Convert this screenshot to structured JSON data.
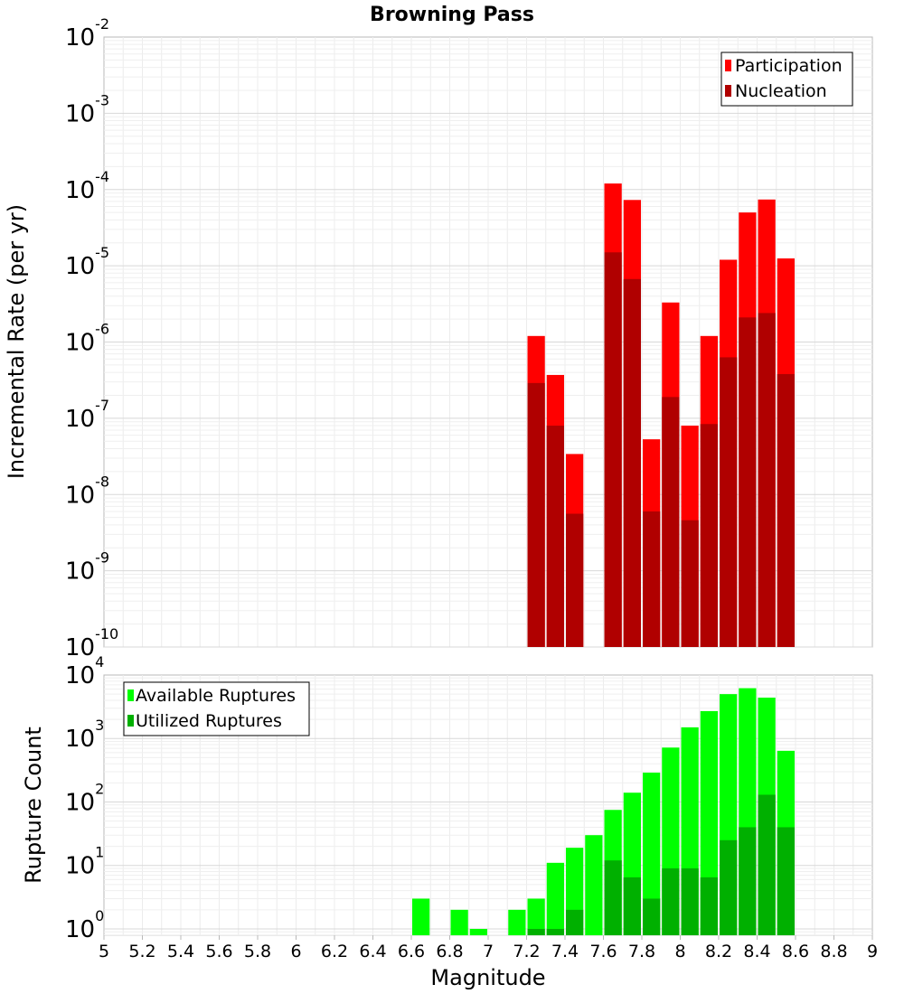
{
  "chart_data": {
    "title": "Browning Pass",
    "xlabel": "Magnitude",
    "xlim": [
      5,
      9
    ],
    "x_ticks": [
      "5",
      "5.2",
      "5.4",
      "5.6",
      "5.8",
      "6",
      "6.2",
      "6.4",
      "6.6",
      "6.8",
      "7",
      "7.2",
      "7.4",
      "7.6",
      "7.8",
      "8",
      "8.2",
      "8.4",
      "8.6",
      "8.8",
      "9"
    ],
    "bin_width": 0.1,
    "panels": [
      {
        "type": "bar",
        "yscale": "log",
        "ylabel": "Incremental Rate (per yr)",
        "ylim_exp": [
          -10,
          -2
        ],
        "y_tick_exponents": [
          "-10",
          "-9",
          "-8",
          "-7",
          "-6",
          "-5",
          "-4",
          "-3",
          "-2"
        ],
        "legend_position": "top-right",
        "series": [
          {
            "name": "Participation",
            "color": "#ff0000",
            "x": [
              7.25,
              7.35,
              7.45,
              7.65,
              7.75,
              7.85,
              7.95,
              8.05,
              8.15,
              8.25,
              8.35,
              8.45,
              8.55
            ],
            "values": [
              1.2e-06,
              3.7e-07,
              3.4e-08,
              0.00012,
              7.3e-05,
              5.3e-08,
              3.3e-06,
              8e-08,
              1.2e-06,
              1.2e-05,
              5e-05,
              7.4e-05,
              1.25e-05
            ]
          },
          {
            "name": "Nucleation",
            "color": "#b00000",
            "x": [
              7.25,
              7.35,
              7.45,
              7.65,
              7.75,
              7.85,
              7.95,
              8.05,
              8.15,
              8.25,
              8.35,
              8.45,
              8.55
            ],
            "values": [
              2.9e-07,
              8e-08,
              5.6e-09,
              1.5e-05,
              6.7e-06,
              6e-09,
              1.9e-07,
              4.6e-09,
              8.4e-08,
              6.3e-07,
              2.1e-06,
              2.4e-06,
              3.8e-07
            ]
          }
        ]
      },
      {
        "type": "bar",
        "yscale": "log",
        "ylabel": "Rupture Count",
        "ylim_exp": [
          -0.1,
          4
        ],
        "y_tick_exponents": [
          "0",
          "1",
          "2",
          "3",
          "4"
        ],
        "legend_position": "top-left",
        "series": [
          {
            "name": "Available Ruptures",
            "color": "#00ff00",
            "x": [
              6.65,
              6.85,
              6.95,
              7.15,
              7.25,
              7.35,
              7.45,
              7.55,
              7.65,
              7.75,
              7.85,
              7.95,
              8.05,
              8.15,
              8.25,
              8.35,
              8.45,
              8.55
            ],
            "values": [
              3,
              2,
              1,
              2,
              3,
              11,
              19,
              30,
              75,
              140,
              290,
              720,
              1500,
              2700,
              5000,
              6200,
              4400,
              640
            ]
          },
          {
            "name": "Utilized Ruptures",
            "color": "#00b000",
            "x": [
              7.25,
              7.35,
              7.45,
              7.65,
              7.75,
              7.85,
              7.95,
              8.05,
              8.15,
              8.25,
              8.35,
              8.45,
              8.55
            ],
            "values": [
              1,
              1,
              2,
              12,
              6.5,
              3,
              9,
              9,
              6.5,
              25,
              40,
              130,
              40
            ]
          }
        ]
      }
    ]
  }
}
